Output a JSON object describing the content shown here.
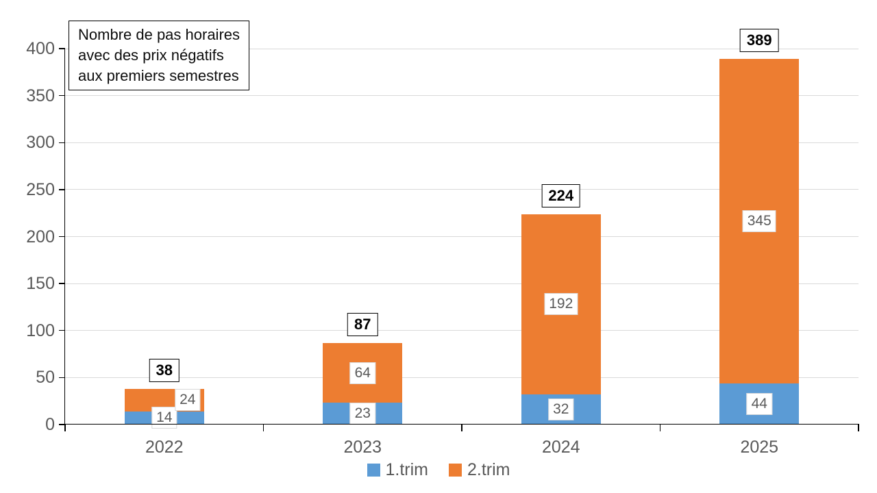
{
  "chart_data": {
    "type": "bar",
    "stacked": true,
    "title": "Nombre de pas horaires avec des prix négatifs aux premiers semestres",
    "title_box_lines": [
      "Nombre de pas horaires",
      "avec des prix négatifs",
      "aux premiers semestres"
    ],
    "categories": [
      "2022",
      "2023",
      "2024",
      "2025"
    ],
    "series": [
      {
        "name": "1.trim",
        "color": "#5B9BD5",
        "values": [
          14,
          23,
          32,
          44
        ],
        "label_dx": [
          0,
          0,
          0,
          0
        ]
      },
      {
        "name": "2.trim",
        "color": "#ED7D31",
        "values": [
          24,
          64,
          192,
          345
        ],
        "label_dx": [
          34,
          0,
          0,
          0
        ]
      }
    ],
    "totals": [
      38,
      87,
      224,
      389
    ],
    "xlabel": "",
    "ylabel": "",
    "ylim": [
      0,
      400
    ],
    "yticks": [
      0,
      50,
      100,
      150,
      200,
      250,
      300,
      350,
      400
    ],
    "grid": true,
    "legend_position": "bottom",
    "colors": {
      "series_1": "#5B9BD5",
      "series_2": "#ED7D31",
      "gridline": "#D9D9D9",
      "axis": "#000000",
      "tick_label": "#595959",
      "segment_label_text": "#595959",
      "segment_label_border": "#D9D9D9",
      "total_label_text": "#000000",
      "background": "#FFFFFF"
    }
  }
}
